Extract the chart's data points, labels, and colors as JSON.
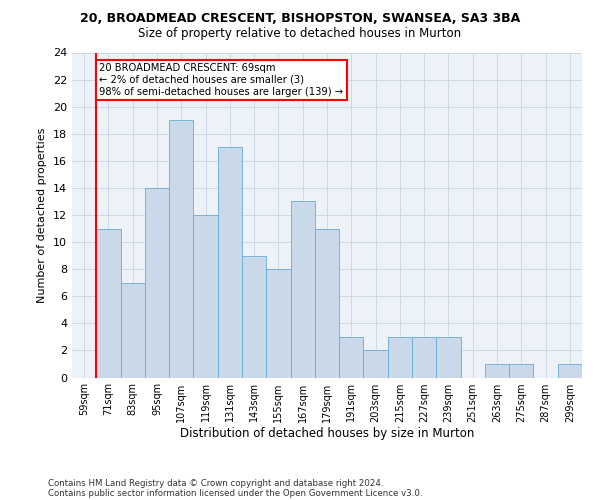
{
  "title_line1": "20, BROADMEAD CRESCENT, BISHOPSTON, SWANSEA, SA3 3BA",
  "title_line2": "Size of property relative to detached houses in Murton",
  "xlabel": "Distribution of detached houses by size in Murton",
  "ylabel": "Number of detached properties",
  "bin_labels": [
    "59sqm",
    "71sqm",
    "83sqm",
    "95sqm",
    "107sqm",
    "119sqm",
    "131sqm",
    "143sqm",
    "155sqm",
    "167sqm",
    "179sqm",
    "191sqm",
    "203sqm",
    "215sqm",
    "227sqm",
    "239sqm",
    "251sqm",
    "263sqm",
    "275sqm",
    "287sqm",
    "299sqm"
  ],
  "bar_heights": [
    0,
    11,
    7,
    14,
    19,
    12,
    17,
    9,
    8,
    13,
    11,
    3,
    2,
    3,
    3,
    3,
    0,
    1,
    1,
    0,
    1
  ],
  "bar_color": "#c9d9ea",
  "bar_edge_color": "#6aaad4",
  "grid_color": "#d0d8e8",
  "subject_line_color": "red",
  "annotation_text": "20 BROADMEAD CRESCENT: 69sqm\n← 2% of detached houses are smaller (3)\n98% of semi-detached houses are larger (139) →",
  "annotation_box_color": "white",
  "annotation_box_edge": "red",
  "ylim": [
    0,
    24
  ],
  "yticks": [
    0,
    2,
    4,
    6,
    8,
    10,
    12,
    14,
    16,
    18,
    20,
    22,
    24
  ],
  "footnote1": "Contains HM Land Registry data © Crown copyright and database right 2024.",
  "footnote2": "Contains public sector information licensed under the Open Government Licence v3.0.",
  "bg_color": "#edf1f8"
}
